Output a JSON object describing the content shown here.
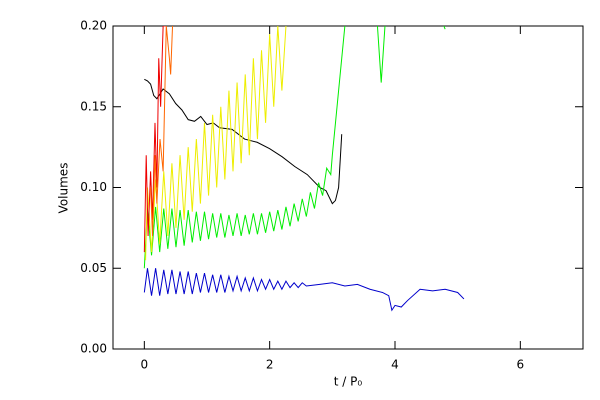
{
  "chart_data": {
    "type": "line",
    "xlabel": "t / P₀",
    "ylabel": "Volumes",
    "xlim": [
      -0.5,
      7
    ],
    "ylim": [
      0,
      0.2
    ],
    "xticks": [
      0,
      2,
      4,
      6
    ],
    "yticks": [
      {
        "value": 0,
        "label": "0.00"
      },
      {
        "value": 0.05,
        "label": "0.05"
      },
      {
        "value": 0.1,
        "label": "0.10"
      },
      {
        "value": 0.15,
        "label": "0.15"
      },
      {
        "value": 0.2,
        "label": "0.20"
      }
    ],
    "series": [
      {
        "color": "#000000",
        "x": [
          0,
          0.05,
          0.1,
          0.15,
          0.2,
          0.3,
          0.4,
          0.5,
          0.6,
          0.7,
          0.8,
          0.9,
          1.0,
          1.1,
          1.2,
          1.4,
          1.6,
          1.8,
          2.0,
          2.2,
          2.4,
          2.6,
          2.8,
          2.9,
          3.0,
          3.05,
          3.1,
          3.15
        ],
        "values": [
          0.167,
          0.166,
          0.164,
          0.157,
          0.155,
          0.161,
          0.158,
          0.152,
          0.148,
          0.142,
          0.141,
          0.144,
          0.139,
          0.14,
          0.137,
          0.136,
          0.13,
          0.128,
          0.124,
          0.119,
          0.113,
          0.108,
          0.1,
          0.098,
          0.09,
          0.092,
          0.1,
          0.133
        ]
      },
      {
        "color": "#0000cc",
        "x": [
          0,
          0.05,
          0.115,
          0.18,
          0.245,
          0.31,
          0.375,
          0.44,
          0.505,
          0.57,
          0.635,
          0.7,
          0.765,
          0.83,
          0.895,
          0.96,
          1.025,
          1.09,
          1.155,
          1.22,
          1.285,
          1.35,
          1.415,
          1.48,
          1.545,
          1.61,
          1.675,
          1.74,
          1.805,
          1.87,
          1.935,
          2.0,
          2.065,
          2.13,
          2.195,
          2.26,
          2.325,
          2.39,
          2.455,
          2.52,
          2.585,
          2.8,
          3.0,
          3.2,
          3.4,
          3.6,
          3.8,
          3.9,
          3.95,
          4.0,
          4.1,
          4.2,
          4.4,
          4.6,
          4.8,
          5.0,
          5.1
        ],
        "values": [
          0.035,
          0.05,
          0.033,
          0.05,
          0.033,
          0.049,
          0.034,
          0.049,
          0.034,
          0.048,
          0.034,
          0.048,
          0.034,
          0.047,
          0.035,
          0.047,
          0.035,
          0.046,
          0.035,
          0.046,
          0.035,
          0.045,
          0.036,
          0.045,
          0.036,
          0.044,
          0.036,
          0.044,
          0.036,
          0.043,
          0.037,
          0.043,
          0.037,
          0.042,
          0.037,
          0.042,
          0.038,
          0.041,
          0.038,
          0.041,
          0.039,
          0.04,
          0.041,
          0.039,
          0.04,
          0.037,
          0.035,
          0.033,
          0.024,
          0.027,
          0.026,
          0.03,
          0.037,
          0.036,
          0.037,
          0.035,
          0.031
        ]
      },
      {
        "color": "#00ee00",
        "x": [
          0,
          0.05,
          0.115,
          0.18,
          0.245,
          0.31,
          0.375,
          0.44,
          0.505,
          0.57,
          0.635,
          0.7,
          0.765,
          0.83,
          0.895,
          0.96,
          1.025,
          1.09,
          1.155,
          1.22,
          1.285,
          1.35,
          1.415,
          1.48,
          1.545,
          1.61,
          1.675,
          1.74,
          1.805,
          1.87,
          1.935,
          2.0,
          2.065,
          2.13,
          2.195,
          2.26,
          2.325,
          2.39,
          2.455,
          2.52,
          2.585,
          2.65,
          2.715,
          2.78,
          2.845,
          2.91,
          2.975,
          3.0,
          3.05,
          3.1,
          3.15,
          3.2,
          3.5,
          3.72,
          3.78,
          3.84,
          4.2,
          4.78,
          4.8
        ],
        "values": [
          0.05,
          0.087,
          0.058,
          0.088,
          0.06,
          0.087,
          0.062,
          0.087,
          0.063,
          0.086,
          0.064,
          0.086,
          0.066,
          0.085,
          0.067,
          0.085,
          0.068,
          0.084,
          0.069,
          0.084,
          0.069,
          0.083,
          0.07,
          0.084,
          0.07,
          0.083,
          0.071,
          0.084,
          0.071,
          0.084,
          0.072,
          0.085,
          0.073,
          0.086,
          0.074,
          0.088,
          0.076,
          0.09,
          0.079,
          0.093,
          0.082,
          0.097,
          0.087,
          0.103,
          0.095,
          0.112,
          0.108,
          0.12,
          0.14,
          0.16,
          0.18,
          0.2,
          null,
          0.2,
          0.165,
          0.2,
          null,
          0.2,
          0.198
        ]
      },
      {
        "color": "#eeee00",
        "x": [
          0.02,
          0.05,
          0.115,
          0.18,
          0.245,
          0.31,
          0.375,
          0.44,
          0.505,
          0.57,
          0.635,
          0.7,
          0.765,
          0.83,
          0.895,
          0.96,
          1.025,
          1.09,
          1.155,
          1.22,
          1.285,
          1.35,
          1.415,
          1.48,
          1.545,
          1.61,
          1.675,
          1.74,
          1.805,
          1.87,
          1.935,
          2.0,
          2.065,
          2.13,
          2.195,
          2.26
        ],
        "values": [
          0.055,
          0.1,
          0.06,
          0.105,
          0.065,
          0.11,
          0.07,
          0.115,
          0.075,
          0.12,
          0.08,
          0.125,
          0.085,
          0.13,
          0.09,
          0.14,
          0.095,
          0.145,
          0.1,
          0.15,
          0.105,
          0.16,
          0.11,
          0.165,
          0.115,
          0.17,
          0.12,
          0.18,
          0.13,
          0.185,
          0.14,
          0.195,
          0.15,
          0.2,
          0.16,
          0.2
        ]
      },
      {
        "color": "#ee0000",
        "x": [
          0.0,
          0.03,
          0.06,
          0.1,
          0.13,
          0.17,
          0.2,
          0.23,
          0.26,
          0.3,
          0.35
        ],
        "values": [
          0.06,
          0.12,
          0.07,
          0.11,
          0.08,
          0.14,
          0.1,
          0.18,
          0.15,
          0.2,
          0.2
        ]
      },
      {
        "color": "#ff6600",
        "x": [
          0.1,
          0.13,
          0.17,
          0.2,
          0.25,
          0.3,
          0.35,
          0.4,
          0.42,
          0.45
        ],
        "values": [
          0.1,
          0.07,
          0.12,
          0.09,
          0.13,
          0.11,
          0.2,
          0.18,
          0.17,
          0.2
        ]
      }
    ]
  }
}
